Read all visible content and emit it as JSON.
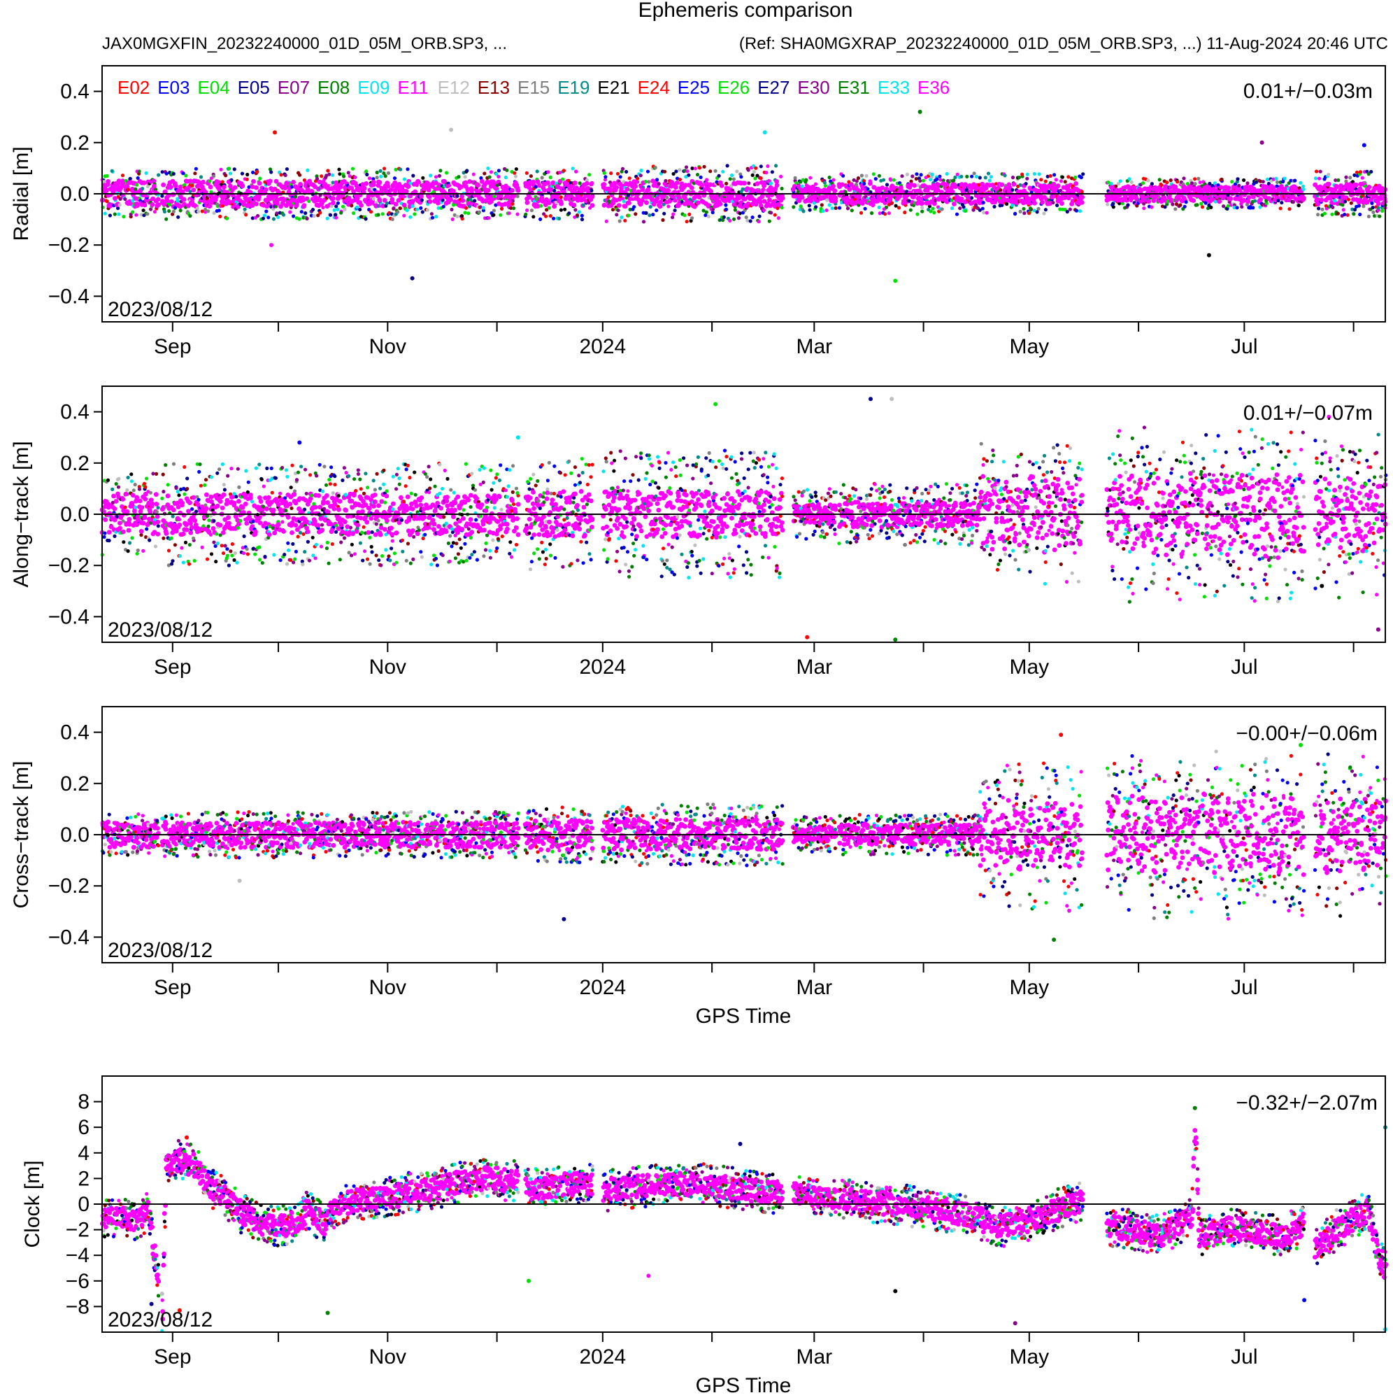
{
  "figure": {
    "title": "Ephemeris comparison",
    "subtitle_left": "JAX0MGXFIN_20232240000_01D_05M_ORB.SP3, ...",
    "subtitle_right": "(Ref: SHA0MGXRAP_20232240000_01D_05M_ORB.SP3, ...) 11-Aug-2024 20:46 UTC"
  },
  "colors": {
    "frame": "#000000",
    "zero_line": "#000000",
    "text": "#000000",
    "background": "#ffffff"
  },
  "legend": [
    {
      "label": "E02",
      "color": "#ff0000"
    },
    {
      "label": "E03",
      "color": "#0000ff"
    },
    {
      "label": "E04",
      "color": "#00e000"
    },
    {
      "label": "E05",
      "color": "#00008b"
    },
    {
      "label": "E07",
      "color": "#8b008b"
    },
    {
      "label": "E08",
      "color": "#008000"
    },
    {
      "label": "E09",
      "color": "#00e5ee"
    },
    {
      "label": "E11",
      "color": "#ff00ff"
    },
    {
      "label": "E12",
      "color": "#bebebe"
    },
    {
      "label": "E13",
      "color": "#8b0000"
    },
    {
      "label": "E15",
      "color": "#7f7f7f"
    },
    {
      "label": "E19",
      "color": "#008b8b"
    },
    {
      "label": "E21",
      "color": "#000000"
    },
    {
      "label": "E24",
      "color": "#ff0000"
    },
    {
      "label": "E25",
      "color": "#0000ff"
    },
    {
      "label": "E26",
      "color": "#00e000"
    },
    {
      "label": "E27",
      "color": "#00008b"
    },
    {
      "label": "E30",
      "color": "#8b008b"
    },
    {
      "label": "E31",
      "color": "#008000"
    },
    {
      "label": "E33",
      "color": "#00e5ee"
    },
    {
      "label": "E36",
      "color": "#ff00ff"
    }
  ],
  "chart_data": [
    {
      "type": "scatter",
      "ylabel": "Radial [m]",
      "xlabel": "",
      "date_label": "2023/08/12",
      "stat": "0.01+/−0.03m",
      "ylim": [
        -0.5,
        0.5
      ],
      "yticks": [
        -0.4,
        -0.2,
        0.0,
        0.2,
        0.4
      ],
      "ytick_labels": [
        "−0.4",
        "−0.2",
        "0.0",
        "0.2",
        "0.4"
      ],
      "x_range_days": [
        0,
        364
      ],
      "xtick_labels": [
        {
          "day": 20,
          "label": "Sep"
        },
        {
          "day": 81,
          "label": "Nov"
        },
        {
          "day": 142,
          "label": "2024"
        },
        {
          "day": 202,
          "label": "Mar"
        },
        {
          "day": 263,
          "label": "May"
        },
        {
          "day": 324,
          "label": "Jul"
        }
      ],
      "minor_ticks_days": [
        50,
        112,
        173,
        233,
        294,
        355
      ],
      "zero_line": 0,
      "segments": [
        {
          "start": 0,
          "end": 16,
          "core": 0.05,
          "spread": 0.09,
          "grow": 0
        },
        {
          "start": 17,
          "end": 118,
          "core": 0.05,
          "spread": 0.1,
          "grow": 0
        },
        {
          "start": 120,
          "end": 139,
          "core": 0.05,
          "spread": 0.1,
          "grow": 0
        },
        {
          "start": 142,
          "end": 193,
          "core": 0.05,
          "spread": 0.11,
          "grow": 0
        },
        {
          "start": 196,
          "end": 208,
          "core": 0.03,
          "spread": 0.07,
          "grow": 0
        },
        {
          "start": 209,
          "end": 278,
          "core": 0.04,
          "spread": 0.08,
          "grow": 0
        },
        {
          "start": 285,
          "end": 341,
          "core": 0.03,
          "spread": 0.06,
          "grow": 0
        },
        {
          "start": 344,
          "end": 364,
          "core": 0.04,
          "spread": 0.09,
          "grow": 0
        }
      ],
      "outliers": [
        {
          "day": 88,
          "value": -0.33
        },
        {
          "day": 99,
          "value": 0.25
        },
        {
          "day": 49,
          "value": 0.24
        },
        {
          "day": 232,
          "value": 0.32
        },
        {
          "day": 225,
          "value": -0.34
        },
        {
          "day": 48,
          "value": -0.2
        },
        {
          "day": 314,
          "value": -0.24
        },
        {
          "day": 329,
          "value": 0.2
        },
        {
          "day": 358,
          "value": 0.19
        },
        {
          "day": 188,
          "value": 0.24
        }
      ]
    },
    {
      "type": "scatter",
      "ylabel": "Along−track [m]",
      "xlabel": "",
      "date_label": "2023/08/12",
      "stat": "0.01+/−0.07m",
      "ylim": [
        -0.5,
        0.5
      ],
      "yticks": [
        -0.4,
        -0.2,
        0.0,
        0.2,
        0.4
      ],
      "ytick_labels": [
        "−0.4",
        "−0.2",
        "0.0",
        "0.2",
        "0.4"
      ],
      "x_range_days": [
        0,
        364
      ],
      "xtick_labels": [
        {
          "day": 20,
          "label": "Sep"
        },
        {
          "day": 81,
          "label": "Nov"
        },
        {
          "day": 142,
          "label": "2024"
        },
        {
          "day": 202,
          "label": "Mar"
        },
        {
          "day": 263,
          "label": "May"
        },
        {
          "day": 324,
          "label": "Jul"
        }
      ],
      "minor_ticks_days": [
        50,
        112,
        173,
        233,
        294,
        355
      ],
      "zero_line": 0,
      "segments": [
        {
          "start": 0,
          "end": 16,
          "core": 0.08,
          "spread": 0.16,
          "grow": 0
        },
        {
          "start": 17,
          "end": 118,
          "core": 0.08,
          "spread": 0.2,
          "grow": 0
        },
        {
          "start": 120,
          "end": 139,
          "core": 0.09,
          "spread": 0.22,
          "grow": 0
        },
        {
          "start": 142,
          "end": 193,
          "core": 0.09,
          "spread": 0.25,
          "grow": 0
        },
        {
          "start": 196,
          "end": 208,
          "core": 0.04,
          "spread": 0.1,
          "grow": 0
        },
        {
          "start": 209,
          "end": 249,
          "core": 0.05,
          "spread": 0.12,
          "grow": 0
        },
        {
          "start": 249,
          "end": 278,
          "core": 0.15,
          "spread": 0.3,
          "grow": 1
        },
        {
          "start": 285,
          "end": 341,
          "core": 0.17,
          "spread": 0.36,
          "grow": 1
        },
        {
          "start": 344,
          "end": 364,
          "core": 0.15,
          "spread": 0.33,
          "grow": 1
        }
      ],
      "outliers": [
        {
          "day": 218,
          "value": 0.45
        },
        {
          "day": 224,
          "value": 0.45
        },
        {
          "day": 200,
          "value": -0.48
        },
        {
          "day": 225,
          "value": -0.49
        },
        {
          "day": 174,
          "value": 0.43
        },
        {
          "day": 348,
          "value": 0.38
        },
        {
          "day": 346,
          "value": -0.28
        },
        {
          "day": 362,
          "value": -0.45
        },
        {
          "day": 56,
          "value": 0.28
        },
        {
          "day": 118,
          "value": 0.3
        }
      ]
    },
    {
      "type": "scatter",
      "ylabel": "Cross−track [m]",
      "xlabel": "GPS Time",
      "date_label": "2023/08/12",
      "stat": "−0.00+/−0.06m",
      "ylim": [
        -0.5,
        0.5
      ],
      "yticks": [
        -0.4,
        -0.2,
        0.0,
        0.2,
        0.4
      ],
      "ytick_labels": [
        "−0.4",
        "−0.2",
        "0.0",
        "0.2",
        "0.4"
      ],
      "x_range_days": [
        0,
        364
      ],
      "xtick_labels": [
        {
          "day": 20,
          "label": "Sep"
        },
        {
          "day": 81,
          "label": "Nov"
        },
        {
          "day": 142,
          "label": "2024"
        },
        {
          "day": 202,
          "label": "Mar"
        },
        {
          "day": 263,
          "label": "May"
        },
        {
          "day": 324,
          "label": "Jul"
        }
      ],
      "minor_ticks_days": [
        50,
        112,
        173,
        233,
        294,
        355
      ],
      "zero_line": 0,
      "segments": [
        {
          "start": 0,
          "end": 16,
          "core": 0.05,
          "spread": 0.08,
          "grow": 0
        },
        {
          "start": 17,
          "end": 118,
          "core": 0.05,
          "spread": 0.09,
          "grow": 0
        },
        {
          "start": 120,
          "end": 139,
          "core": 0.06,
          "spread": 0.11,
          "grow": 0
        },
        {
          "start": 142,
          "end": 193,
          "core": 0.06,
          "spread": 0.12,
          "grow": 0
        },
        {
          "start": 196,
          "end": 208,
          "core": 0.03,
          "spread": 0.07,
          "grow": 0
        },
        {
          "start": 209,
          "end": 249,
          "core": 0.04,
          "spread": 0.08,
          "grow": 0
        },
        {
          "start": 249,
          "end": 278,
          "core": 0.14,
          "spread": 0.3,
          "grow": 1
        },
        {
          "start": 285,
          "end": 341,
          "core": 0.16,
          "spread": 0.33,
          "grow": 1
        },
        {
          "start": 344,
          "end": 364,
          "core": 0.15,
          "spread": 0.32,
          "grow": 1
        }
      ],
      "outliers": [
        {
          "day": 131,
          "value": -0.33
        },
        {
          "day": 39,
          "value": -0.18
        },
        {
          "day": 272,
          "value": 0.39
        },
        {
          "day": 270,
          "value": -0.41
        },
        {
          "day": 340,
          "value": 0.35
        }
      ]
    },
    {
      "type": "scatter",
      "ylabel": "Clock [m]",
      "xlabel": "GPS Time",
      "date_label": "2023/08/12",
      "stat": "−0.32+/−2.07m",
      "ylim": [
        -10,
        10
      ],
      "yticks": [
        -8,
        -6,
        -4,
        -2,
        0,
        2,
        4,
        6,
        8
      ],
      "ytick_labels": [
        "−8",
        "−6",
        "−4",
        "−2",
        "0",
        "2",
        "4",
        "6",
        "8"
      ],
      "x_range_days": [
        0,
        364
      ],
      "xtick_labels": [
        {
          "day": 20,
          "label": "Sep"
        },
        {
          "day": 81,
          "label": "Nov"
        },
        {
          "day": 142,
          "label": "2024"
        },
        {
          "day": 202,
          "label": "Mar"
        },
        {
          "day": 263,
          "label": "May"
        },
        {
          "day": 324,
          "label": "Jul"
        }
      ],
      "minor_ticks_days": [
        50,
        112,
        173,
        233,
        294,
        355
      ],
      "zero_line": 0,
      "trend": [
        [
          0,
          -1.2
        ],
        [
          5,
          -1.0
        ],
        [
          10,
          -1.4
        ],
        [
          13,
          -0.5
        ],
        [
          17,
          -8.5
        ],
        [
          18,
          3.0
        ],
        [
          22,
          3.5
        ],
        [
          26,
          3.0
        ],
        [
          30,
          1.5
        ],
        [
          35,
          0.5
        ],
        [
          40,
          -0.8
        ],
        [
          48,
          -1.8
        ],
        [
          55,
          -1.5
        ],
        [
          58,
          -0.5
        ],
        [
          63,
          -1.5
        ],
        [
          65,
          -0.5
        ],
        [
          70,
          0.2
        ],
        [
          80,
          0.5
        ],
        [
          90,
          1.0
        ],
        [
          100,
          1.6
        ],
        [
          110,
          2.0
        ],
        [
          118,
          1.8
        ],
        [
          121,
          1.2
        ],
        [
          130,
          1.5
        ],
        [
          139,
          1.6
        ],
        [
          142,
          1.0
        ],
        [
          150,
          1.3
        ],
        [
          160,
          1.5
        ],
        [
          170,
          1.6
        ],
        [
          180,
          1.2
        ],
        [
          193,
          0.8
        ],
        [
          196,
          0.9
        ],
        [
          205,
          0.5
        ],
        [
          215,
          0.2
        ],
        [
          225,
          0.0
        ],
        [
          235,
          -0.4
        ],
        [
          245,
          -0.8
        ],
        [
          255,
          -1.8
        ],
        [
          262,
          -1.3
        ],
        [
          270,
          -0.5
        ],
        [
          278,
          0.2
        ],
        [
          285,
          -1.8
        ],
        [
          292,
          -2.0
        ],
        [
          300,
          -2.5
        ],
        [
          309,
          -1.0
        ],
        [
          310,
          6.8
        ],
        [
          311,
          -2.5
        ],
        [
          318,
          -2.0
        ],
        [
          325,
          -2.0
        ],
        [
          335,
          -2.5
        ],
        [
          341,
          -1.5
        ],
        [
          344,
          -3.5
        ],
        [
          350,
          -2.0
        ],
        [
          356,
          -1.0
        ],
        [
          359,
          -0.5
        ],
        [
          362,
          -4.0
        ],
        [
          364,
          -5.0
        ]
      ],
      "segments": [
        {
          "start": 0,
          "end": 16,
          "core": 0.8,
          "spread": 1.5,
          "grow": 0
        },
        {
          "start": 17,
          "end": 118,
          "core": 0.9,
          "spread": 1.6,
          "grow": 0
        },
        {
          "start": 120,
          "end": 139,
          "core": 0.9,
          "spread": 1.5,
          "grow": 0
        },
        {
          "start": 142,
          "end": 193,
          "core": 0.9,
          "spread": 1.6,
          "grow": 0
        },
        {
          "start": 196,
          "end": 208,
          "core": 0.8,
          "spread": 1.4,
          "grow": 0
        },
        {
          "start": 209,
          "end": 278,
          "core": 0.9,
          "spread": 1.6,
          "grow": 0
        },
        {
          "start": 285,
          "end": 341,
          "core": 0.9,
          "spread": 1.6,
          "grow": 0
        },
        {
          "start": 344,
          "end": 364,
          "core": 0.9,
          "spread": 1.6,
          "grow": 0
        }
      ],
      "outliers": [
        {
          "day": 14,
          "value": -7.8
        },
        {
          "day": 17,
          "value": -7.0
        },
        {
          "day": 22,
          "value": -8.3
        },
        {
          "day": 64,
          "value": -8.5
        },
        {
          "day": 121,
          "value": -6.0
        },
        {
          "day": 155,
          "value": -5.6
        },
        {
          "day": 225,
          "value": -6.8
        },
        {
          "day": 259,
          "value": -9.3
        },
        {
          "day": 341,
          "value": -7.5
        },
        {
          "day": 364,
          "value": -9.8
        },
        {
          "day": 364,
          "value": 6.0
        },
        {
          "day": 181,
          "value": 4.7
        },
        {
          "day": 24,
          "value": 5.2
        },
        {
          "day": 310,
          "value": 7.5
        }
      ]
    }
  ]
}
